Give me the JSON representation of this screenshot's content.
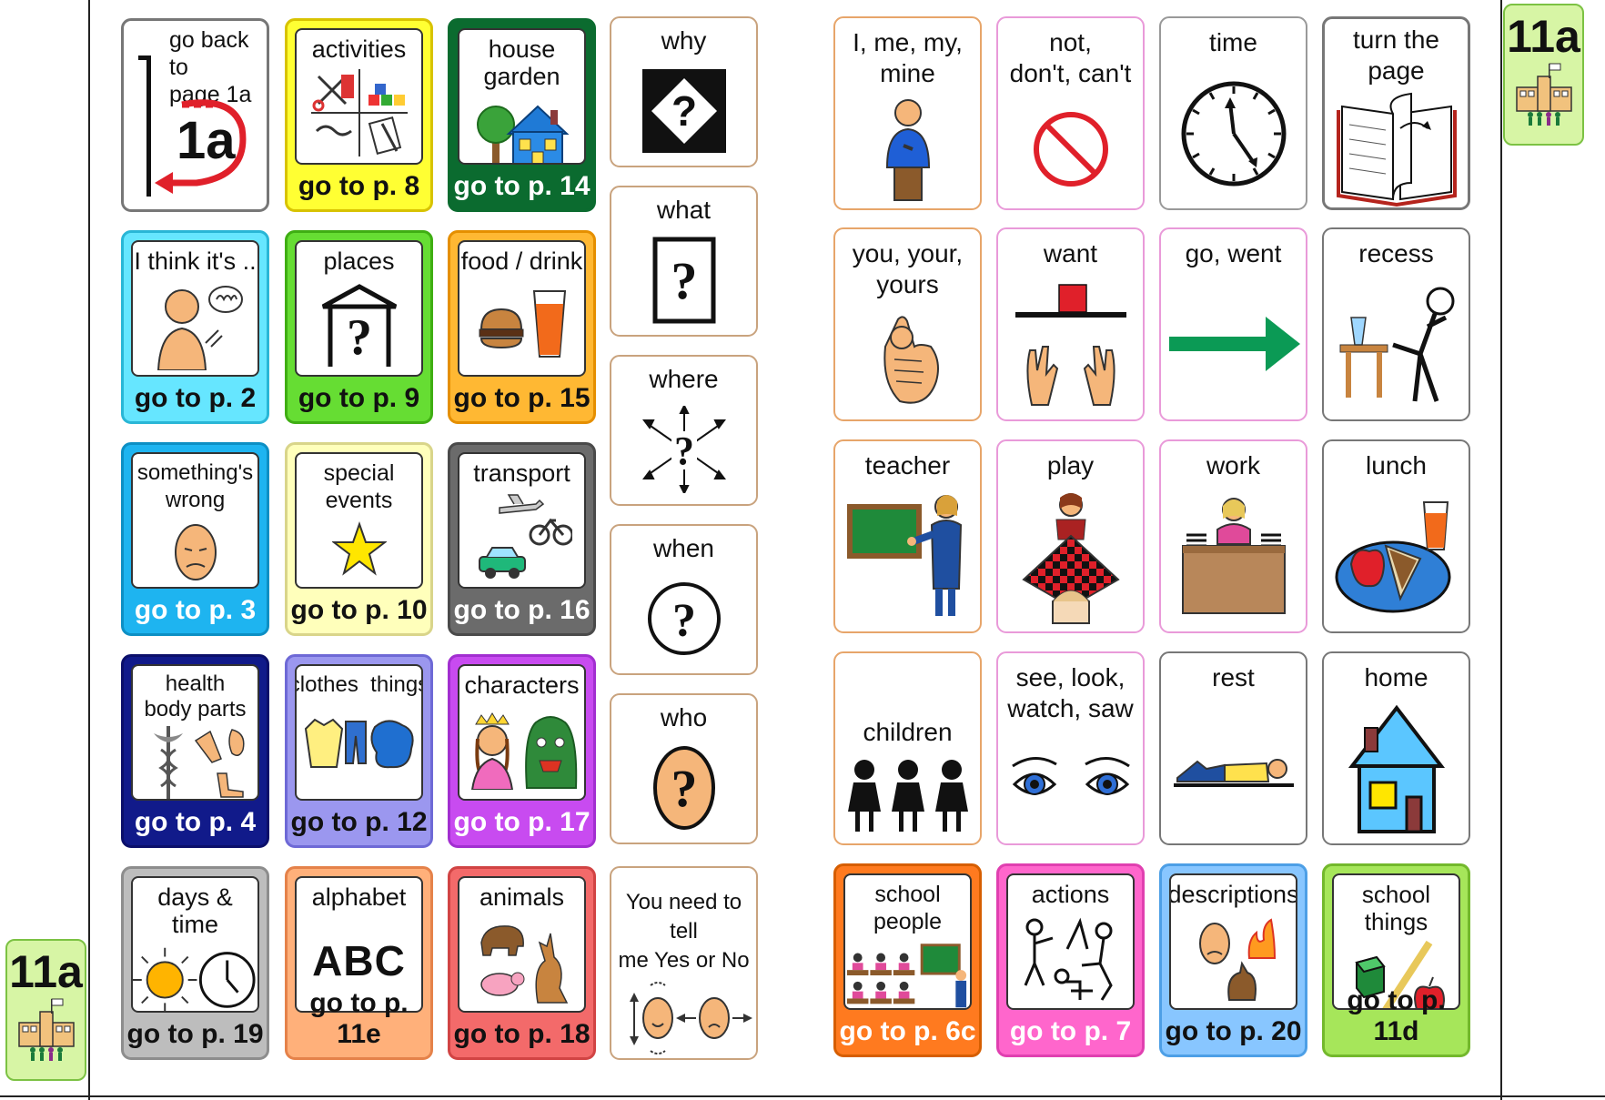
{
  "page_tabs": [
    {
      "label": "11a",
      "icon": "school-icon"
    },
    {
      "label": "11a",
      "icon": "school-icon"
    }
  ],
  "left_grid": [
    {
      "label": "go back to\npage 1a",
      "icon_text": "1a",
      "icon": "back-arrow-icon",
      "type": "back",
      "border": "#777777"
    },
    {
      "label": "activities",
      "goto": "go to p. 8",
      "icon": "activities-icon",
      "color": "#ffff33",
      "border": "#d8c300"
    },
    {
      "label": "house garden",
      "goto": "go to p. 14",
      "icon": "house-garden-icon",
      "color": "#0b6b2f",
      "border": "#0b6b2f",
      "goto_color": "#ffffff"
    },
    {
      "label": "I think it's ..",
      "goto": "go to p. 2",
      "icon": "think-icon",
      "color": "#66e6ff",
      "border": "#29b6d6"
    },
    {
      "label": "places",
      "goto": "go to p. 9",
      "icon": "places-icon",
      "color": "#66dd33",
      "border": "#3fae13"
    },
    {
      "label": "food / drink",
      "goto": "go to p. 15",
      "icon": "food-drink-icon",
      "color": "#ffb833",
      "border": "#e58f00"
    },
    {
      "label": "something's\nwrong",
      "goto": "go to p. 3",
      "icon": "sad-face-icon",
      "color": "#1eb4f0",
      "border": "#0d8fc4",
      "goto_color": "#ffffff"
    },
    {
      "label": "special\nevents",
      "goto": "go to p. 10",
      "icon": "star-icon",
      "color": "#ffffbb",
      "border": "#d9d58a"
    },
    {
      "label": "transport",
      "goto": "go to p. 16",
      "icon": "transport-icon",
      "color": "#6b6b6b",
      "border": "#4a4a4a",
      "goto_color": "#ffffff"
    },
    {
      "label": "health\nbody parts",
      "goto": "go to p. 4",
      "icon": "health-icon",
      "color": "#111a8a",
      "border": "#0b0f6a",
      "goto_color": "#ffffff"
    },
    {
      "label": "clothes  things",
      "goto": "go to p. 12",
      "icon": "clothes-icon",
      "color": "#9b97ef",
      "border": "#6e69d6"
    },
    {
      "label": "characters",
      "goto": "go to p. 17",
      "icon": "characters-icon",
      "color": "#c84bf0",
      "border": "#a22fd0",
      "goto_color": "#ffffff"
    },
    {
      "label": "days & time",
      "goto": "go to p. 19",
      "icon": "sun-clock-icon",
      "color": "#bdbdbd",
      "border": "#8d8d8d"
    },
    {
      "label": "alphabet",
      "icon_text": "ABC",
      "goto": "go to p. 11e",
      "icon": "abc-icon",
      "color": "#ffb07a",
      "border": "#e5824a"
    },
    {
      "label": "animals",
      "goto": "go to p. 18",
      "icon": "animals-icon",
      "color": "#f36a6a",
      "border": "#d14444"
    }
  ],
  "questions": [
    {
      "label": "why",
      "icon": "why-icon"
    },
    {
      "label": "what",
      "icon": "what-icon"
    },
    {
      "label": "where",
      "icon": "where-icon"
    },
    {
      "label": "when",
      "icon": "when-icon"
    },
    {
      "label": "who",
      "icon": "who-icon"
    },
    {
      "label": "You need to tell\nme Yes or No",
      "icon": "yes-no-icon"
    }
  ],
  "right_grid": [
    {
      "label": "I, me, my,\nmine",
      "icon": "person-me-icon",
      "border": "#e7a56a"
    },
    {
      "label": "not,\ndon't, can't",
      "icon": "not-icon",
      "border": "#e99ad9"
    },
    {
      "label": "time",
      "icon": "clock-icon",
      "border": "#999999"
    },
    {
      "label": "turn the page",
      "icon": "book-icon",
      "border": "#777777",
      "type": "page"
    },
    {
      "label": "you, your,\nyours",
      "icon": "pointing-hand-icon",
      "border": "#e7a56a"
    },
    {
      "label": "want",
      "icon": "want-icon",
      "border": "#e99ad9"
    },
    {
      "label": "go, went",
      "icon": "arrow-right-icon",
      "border": "#e99ad9"
    },
    {
      "label": "recess",
      "icon": "recess-icon",
      "border": "#777777"
    },
    {
      "label": "teacher",
      "icon": "teacher-icon",
      "border": "#e7a56a"
    },
    {
      "label": "play",
      "icon": "play-icon",
      "border": "#e99ad9"
    },
    {
      "label": "work",
      "icon": "work-icon",
      "border": "#e99ad9"
    },
    {
      "label": "lunch",
      "icon": "lunch-icon",
      "border": "#777777"
    },
    {
      "label": "children",
      "icon": "children-icon",
      "border": "#e7a56a"
    },
    {
      "label": "see, look,\nwatch, saw",
      "icon": "eyes-icon",
      "border": "#e99ad9"
    },
    {
      "label": "rest",
      "icon": "rest-icon",
      "border": "#777777"
    },
    {
      "label": "home",
      "icon": "home-icon",
      "border": "#777777"
    },
    {
      "label": "school people",
      "goto": "go to p. 6c",
      "icon": "school-people-icon",
      "color": "#ff7a1f",
      "border": "#d65e00",
      "goto_color": "#ffffff"
    },
    {
      "label": "actions",
      "goto": "go to p. 7",
      "icon": "actions-icon",
      "color": "#ff66cc",
      "border": "#e040b0",
      "goto_color": "#ffffff"
    },
    {
      "label": "descriptions",
      "goto": "go to p. 20",
      "icon": "descriptions-icon",
      "color": "#88c6ff",
      "border": "#4d9fe6"
    },
    {
      "label": "school things",
      "goto": "go to p. 11d",
      "icon": "school-things-icon",
      "color": "#a6e65a",
      "border": "#73b82c"
    }
  ]
}
